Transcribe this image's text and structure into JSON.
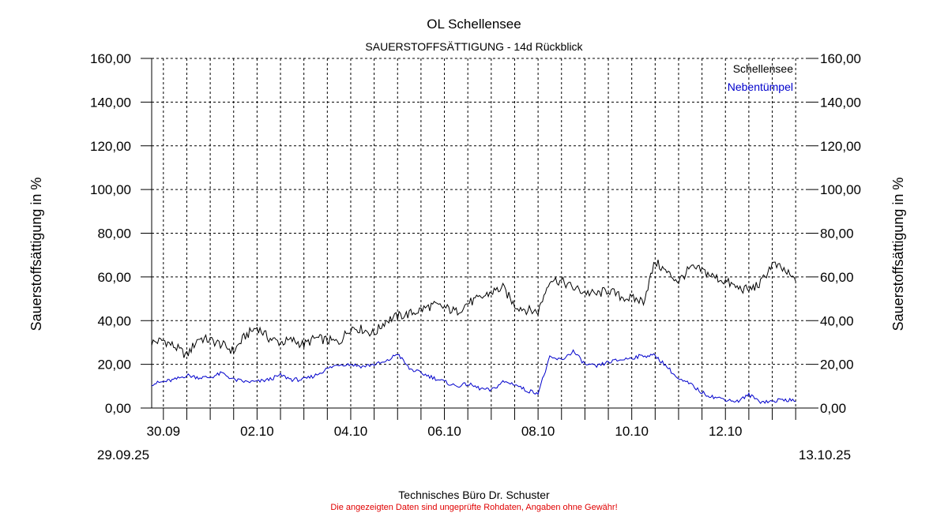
{
  "chart_data": {
    "type": "line",
    "title": "OL Schellensee",
    "subtitle": "SAUERSTOFFSÄTTIGUNG - 14d Rückblick",
    "ylabel_left": "Sauerstoffsättigung in %",
    "ylabel_right": "Sauerstoffsättigung in %",
    "ylim": [
      0,
      160
    ],
    "yticks": [
      "0,00",
      "20,00",
      "40,00",
      "60,00",
      "80,00",
      "100,00",
      "120,00",
      "140,00",
      "160,00"
    ],
    "xlim": [
      "2025-09-29T18:00",
      "2025-10-13T18:00"
    ],
    "xtick_labels": [
      "30.09",
      "02.10",
      "04.10",
      "06.10",
      "08.10",
      "10.10",
      "12.10"
    ],
    "x_start_label": "29.09.25",
    "x_end_label": "13.10.25",
    "grid": true,
    "legend_position": "top-right",
    "series": [
      {
        "name": "Schellensee",
        "color": "#000000",
        "x": [
          "2025-09-29T18:00",
          "2025-09-30T00:00",
          "2025-09-30T06:00",
          "2025-09-30T12:00",
          "2025-09-30T18:00",
          "2025-10-01T00:00",
          "2025-10-01T06:00",
          "2025-10-01T12:00",
          "2025-10-01T18:00",
          "2025-10-02T00:00",
          "2025-10-02T06:00",
          "2025-10-02T12:00",
          "2025-10-02T18:00",
          "2025-10-03T00:00",
          "2025-10-03T06:00",
          "2025-10-03T12:00",
          "2025-10-03T18:00",
          "2025-10-04T00:00",
          "2025-10-04T06:00",
          "2025-10-04T12:00",
          "2025-10-04T18:00",
          "2025-10-05T00:00",
          "2025-10-05T06:00",
          "2025-10-05T12:00",
          "2025-10-05T18:00",
          "2025-10-06T00:00",
          "2025-10-06T06:00",
          "2025-10-06T12:00",
          "2025-10-06T18:00",
          "2025-10-07T00:00",
          "2025-10-07T06:00",
          "2025-10-07T12:00",
          "2025-10-07T18:00",
          "2025-10-08T00:00",
          "2025-10-08T06:00",
          "2025-10-08T12:00",
          "2025-10-08T18:00",
          "2025-10-09T00:00",
          "2025-10-09T06:00",
          "2025-10-09T12:00",
          "2025-10-09T18:00",
          "2025-10-10T00:00",
          "2025-10-10T06:00",
          "2025-10-10T12:00",
          "2025-10-10T18:00",
          "2025-10-11T00:00",
          "2025-10-11T06:00",
          "2025-10-11T12:00",
          "2025-10-11T18:00",
          "2025-10-12T00:00",
          "2025-10-12T06:00",
          "2025-10-12T12:00",
          "2025-10-12T18:00",
          "2025-10-13T00:00",
          "2025-10-13T06:00",
          "2025-10-13T12:00"
        ],
        "values": [
          30,
          31,
          28,
          24,
          32,
          31,
          29,
          26,
          33,
          37,
          32,
          30,
          31,
          29,
          32,
          31,
          30,
          37,
          36,
          34,
          40,
          42,
          43,
          45,
          47,
          46,
          44,
          48,
          50,
          53,
          55,
          47,
          45,
          44,
          59,
          58,
          55,
          53,
          52,
          54,
          51,
          50,
          49,
          67,
          62,
          58,
          64,
          63,
          60,
          58,
          55,
          54,
          57,
          66,
          63,
          58
        ]
      },
      {
        "name": "Nebentümpel",
        "color": "#0000cc",
        "x": [
          "2025-09-29T18:00",
          "2025-09-30T00:00",
          "2025-09-30T06:00",
          "2025-09-30T12:00",
          "2025-09-30T18:00",
          "2025-10-01T00:00",
          "2025-10-01T06:00",
          "2025-10-01T12:00",
          "2025-10-01T18:00",
          "2025-10-02T00:00",
          "2025-10-02T06:00",
          "2025-10-02T12:00",
          "2025-10-02T18:00",
          "2025-10-03T00:00",
          "2025-10-03T06:00",
          "2025-10-03T12:00",
          "2025-10-03T18:00",
          "2025-10-04T00:00",
          "2025-10-04T06:00",
          "2025-10-04T12:00",
          "2025-10-04T18:00",
          "2025-10-05T00:00",
          "2025-10-05T06:00",
          "2025-10-05T12:00",
          "2025-10-05T18:00",
          "2025-10-06T00:00",
          "2025-10-06T06:00",
          "2025-10-06T12:00",
          "2025-10-06T18:00",
          "2025-10-07T00:00",
          "2025-10-07T06:00",
          "2025-10-07T12:00",
          "2025-10-07T18:00",
          "2025-10-08T00:00",
          "2025-10-08T06:00",
          "2025-10-08T12:00",
          "2025-10-08T18:00",
          "2025-10-09T00:00",
          "2025-10-09T06:00",
          "2025-10-09T12:00",
          "2025-10-09T18:00",
          "2025-10-10T00:00",
          "2025-10-10T06:00",
          "2025-10-10T12:00",
          "2025-10-10T18:00",
          "2025-10-11T00:00",
          "2025-10-11T06:00",
          "2025-10-11T12:00",
          "2025-10-11T18:00",
          "2025-10-12T00:00",
          "2025-10-12T06:00",
          "2025-10-12T12:00",
          "2025-10-12T18:00",
          "2025-10-13T00:00",
          "2025-10-13T06:00",
          "2025-10-13T12:00"
        ],
        "values": [
          11,
          12,
          13,
          15,
          14,
          14,
          16,
          13,
          12,
          12,
          13,
          15,
          13,
          13,
          15,
          18,
          20,
          20,
          19,
          20,
          21,
          25,
          18,
          16,
          14,
          12,
          10,
          11,
          9,
          8,
          12,
          11,
          8,
          7,
          23,
          22,
          26,
          20,
          19,
          21,
          22,
          23,
          24,
          24,
          19,
          13,
          11,
          7,
          5,
          4,
          3,
          6,
          3,
          3,
          4,
          3
        ]
      }
    ]
  },
  "footer": {
    "credit": "Technisches Büro Dr. Schuster",
    "disclaimer": "Die angezeigten Daten sind ungeprüfte Rohdaten, Angaben ohne Gewähr!",
    "disclaimer_color": "#e00000"
  }
}
